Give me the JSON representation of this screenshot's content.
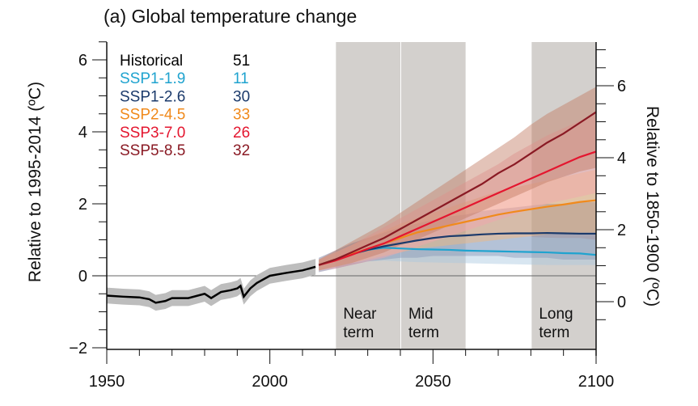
{
  "chart_data": {
    "type": "line",
    "title": "(a) Global temperature change",
    "ylabel": "Relative to 1995-2014 (ºC)",
    "ylabel_right": "Relative to 1850-1900 (ºC)",
    "xlim": [
      1950,
      2100
    ],
    "ylim": [
      -2,
      6.5
    ],
    "x_ticks": [
      1950,
      2000,
      2050,
      2100
    ],
    "y_ticks": [
      -2,
      0,
      2,
      4,
      6
    ],
    "y_ticks_right": [
      0,
      2,
      4,
      6
    ],
    "grid": false,
    "legend_position": "top-left",
    "periods": [
      {
        "label_line1": "Near",
        "label_line2": "term",
        "start": 2021,
        "end": 2040
      },
      {
        "label_line1": "Mid",
        "label_line2": "term",
        "start": 2041,
        "end": 2060
      },
      {
        "label_line1": "Long",
        "label_line2": "term",
        "start": 2081,
        "end": 2100
      }
    ],
    "historical": {
      "name": "Historical",
      "count": "51",
      "color": "#000000",
      "x": [
        1950,
        1955,
        1960,
        1963,
        1965,
        1968,
        1970,
        1975,
        1980,
        1982,
        1985,
        1988,
        1990,
        1991,
        1992,
        1994,
        1996,
        2000,
        2005,
        2010,
        2014
      ],
      "values": [
        -0.55,
        -0.58,
        -0.6,
        -0.65,
        -0.75,
        -0.7,
        -0.62,
        -0.62,
        -0.5,
        -0.62,
        -0.45,
        -0.4,
        -0.35,
        -0.28,
        -0.58,
        -0.35,
        -0.2,
        0.0,
        0.08,
        0.15,
        0.25
      ],
      "band": 0.22
    },
    "x": [
      2015,
      2020,
      2025,
      2030,
      2035,
      2040,
      2045,
      2050,
      2055,
      2060,
      2065,
      2070,
      2075,
      2080,
      2085,
      2090,
      2095,
      2100
    ],
    "series": [
      {
        "name": "SSP1-1.9",
        "count": "11",
        "color": "#1fa3cf",
        "band_color": "#a9c8e0",
        "values": [
          0.3,
          0.45,
          0.6,
          0.72,
          0.78,
          0.76,
          0.74,
          0.73,
          0.72,
          0.7,
          0.69,
          0.68,
          0.67,
          0.66,
          0.65,
          0.63,
          0.62,
          0.58
        ],
        "low": [
          0.15,
          0.25,
          0.35,
          0.4,
          0.42,
          0.4,
          0.38,
          0.37,
          0.36,
          0.35,
          0.34,
          0.33,
          0.32,
          0.31,
          0.3,
          0.3,
          0.3,
          0.3
        ],
        "high": [
          0.45,
          0.65,
          0.85,
          1.0,
          1.1,
          1.12,
          1.12,
          1.12,
          1.12,
          1.1,
          1.1,
          1.1,
          1.08,
          1.08,
          1.06,
          1.05,
          1.05,
          1.0
        ]
      },
      {
        "name": "SSP1-2.6",
        "count": "30",
        "color": "#1b3a6b",
        "band_color": "#6d6e94",
        "values": [
          0.3,
          0.45,
          0.6,
          0.72,
          0.82,
          0.9,
          0.98,
          1.05,
          1.1,
          1.12,
          1.15,
          1.17,
          1.18,
          1.18,
          1.19,
          1.18,
          1.17,
          1.17
        ],
        "low": [
          0.1,
          0.2,
          0.3,
          0.4,
          0.45,
          0.5,
          0.5,
          0.55,
          0.55,
          0.55,
          0.55,
          0.55,
          0.5,
          0.5,
          0.5,
          0.45,
          0.45,
          0.45
        ],
        "high": [
          0.5,
          0.7,
          0.9,
          1.05,
          1.2,
          1.35,
          1.45,
          1.55,
          1.65,
          1.7,
          1.8,
          1.85,
          1.9,
          1.95,
          2.0,
          2.0,
          2.05,
          2.05
        ]
      },
      {
        "name": "SSP2-4.5",
        "count": "33",
        "color": "#f08a1c",
        "band_color": "#f4b77a",
        "values": [
          0.3,
          0.45,
          0.6,
          0.75,
          0.9,
          1.05,
          1.2,
          1.3,
          1.4,
          1.5,
          1.6,
          1.7,
          1.78,
          1.85,
          1.92,
          1.98,
          2.05,
          2.1
        ],
        "low": [
          0.15,
          0.25,
          0.35,
          0.45,
          0.55,
          0.65,
          0.75,
          0.8,
          0.85,
          0.9,
          0.95,
          1.0,
          1.05,
          1.1,
          1.15,
          1.2,
          1.2,
          1.2
        ],
        "high": [
          0.45,
          0.65,
          0.85,
          1.05,
          1.25,
          1.45,
          1.6,
          1.75,
          1.9,
          2.05,
          2.2,
          2.35,
          2.45,
          2.55,
          2.65,
          2.75,
          2.85,
          2.95
        ]
      },
      {
        "name": "SSP3-7.0",
        "count": "26",
        "color": "#e4162f",
        "band_color": "#f4a3ad",
        "values": [
          0.3,
          0.42,
          0.58,
          0.75,
          0.9,
          1.1,
          1.3,
          1.5,
          1.7,
          1.9,
          2.1,
          2.3,
          2.5,
          2.7,
          2.9,
          3.1,
          3.3,
          3.45
        ],
        "low": [
          0.15,
          0.2,
          0.3,
          0.4,
          0.5,
          0.65,
          0.8,
          0.95,
          1.1,
          1.25,
          1.4,
          1.55,
          1.7,
          1.85,
          2.0,
          2.1,
          2.2,
          2.3
        ],
        "high": [
          0.45,
          0.65,
          0.85,
          1.1,
          1.35,
          1.6,
          1.85,
          2.1,
          2.35,
          2.6,
          2.85,
          3.1,
          3.4,
          3.65,
          3.9,
          4.1,
          4.3,
          4.5
        ]
      },
      {
        "name": "SSP5-8.5",
        "count": "32",
        "color": "#8a1a24",
        "band_color": "#c27a62",
        "values": [
          0.3,
          0.45,
          0.65,
          0.85,
          1.05,
          1.3,
          1.55,
          1.8,
          2.05,
          2.3,
          2.55,
          2.85,
          3.1,
          3.4,
          3.7,
          3.95,
          4.25,
          4.55
        ],
        "low": [
          0.15,
          0.25,
          0.35,
          0.5,
          0.65,
          0.85,
          1.0,
          1.2,
          1.4,
          1.6,
          1.8,
          2.0,
          2.2,
          2.4,
          2.6,
          2.75,
          2.9,
          3.0
        ],
        "high": [
          0.45,
          0.7,
          0.95,
          1.2,
          1.45,
          1.75,
          2.05,
          2.35,
          2.65,
          2.95,
          3.25,
          3.55,
          3.85,
          4.2,
          4.5,
          4.75,
          5.0,
          5.25
        ]
      }
    ]
  }
}
